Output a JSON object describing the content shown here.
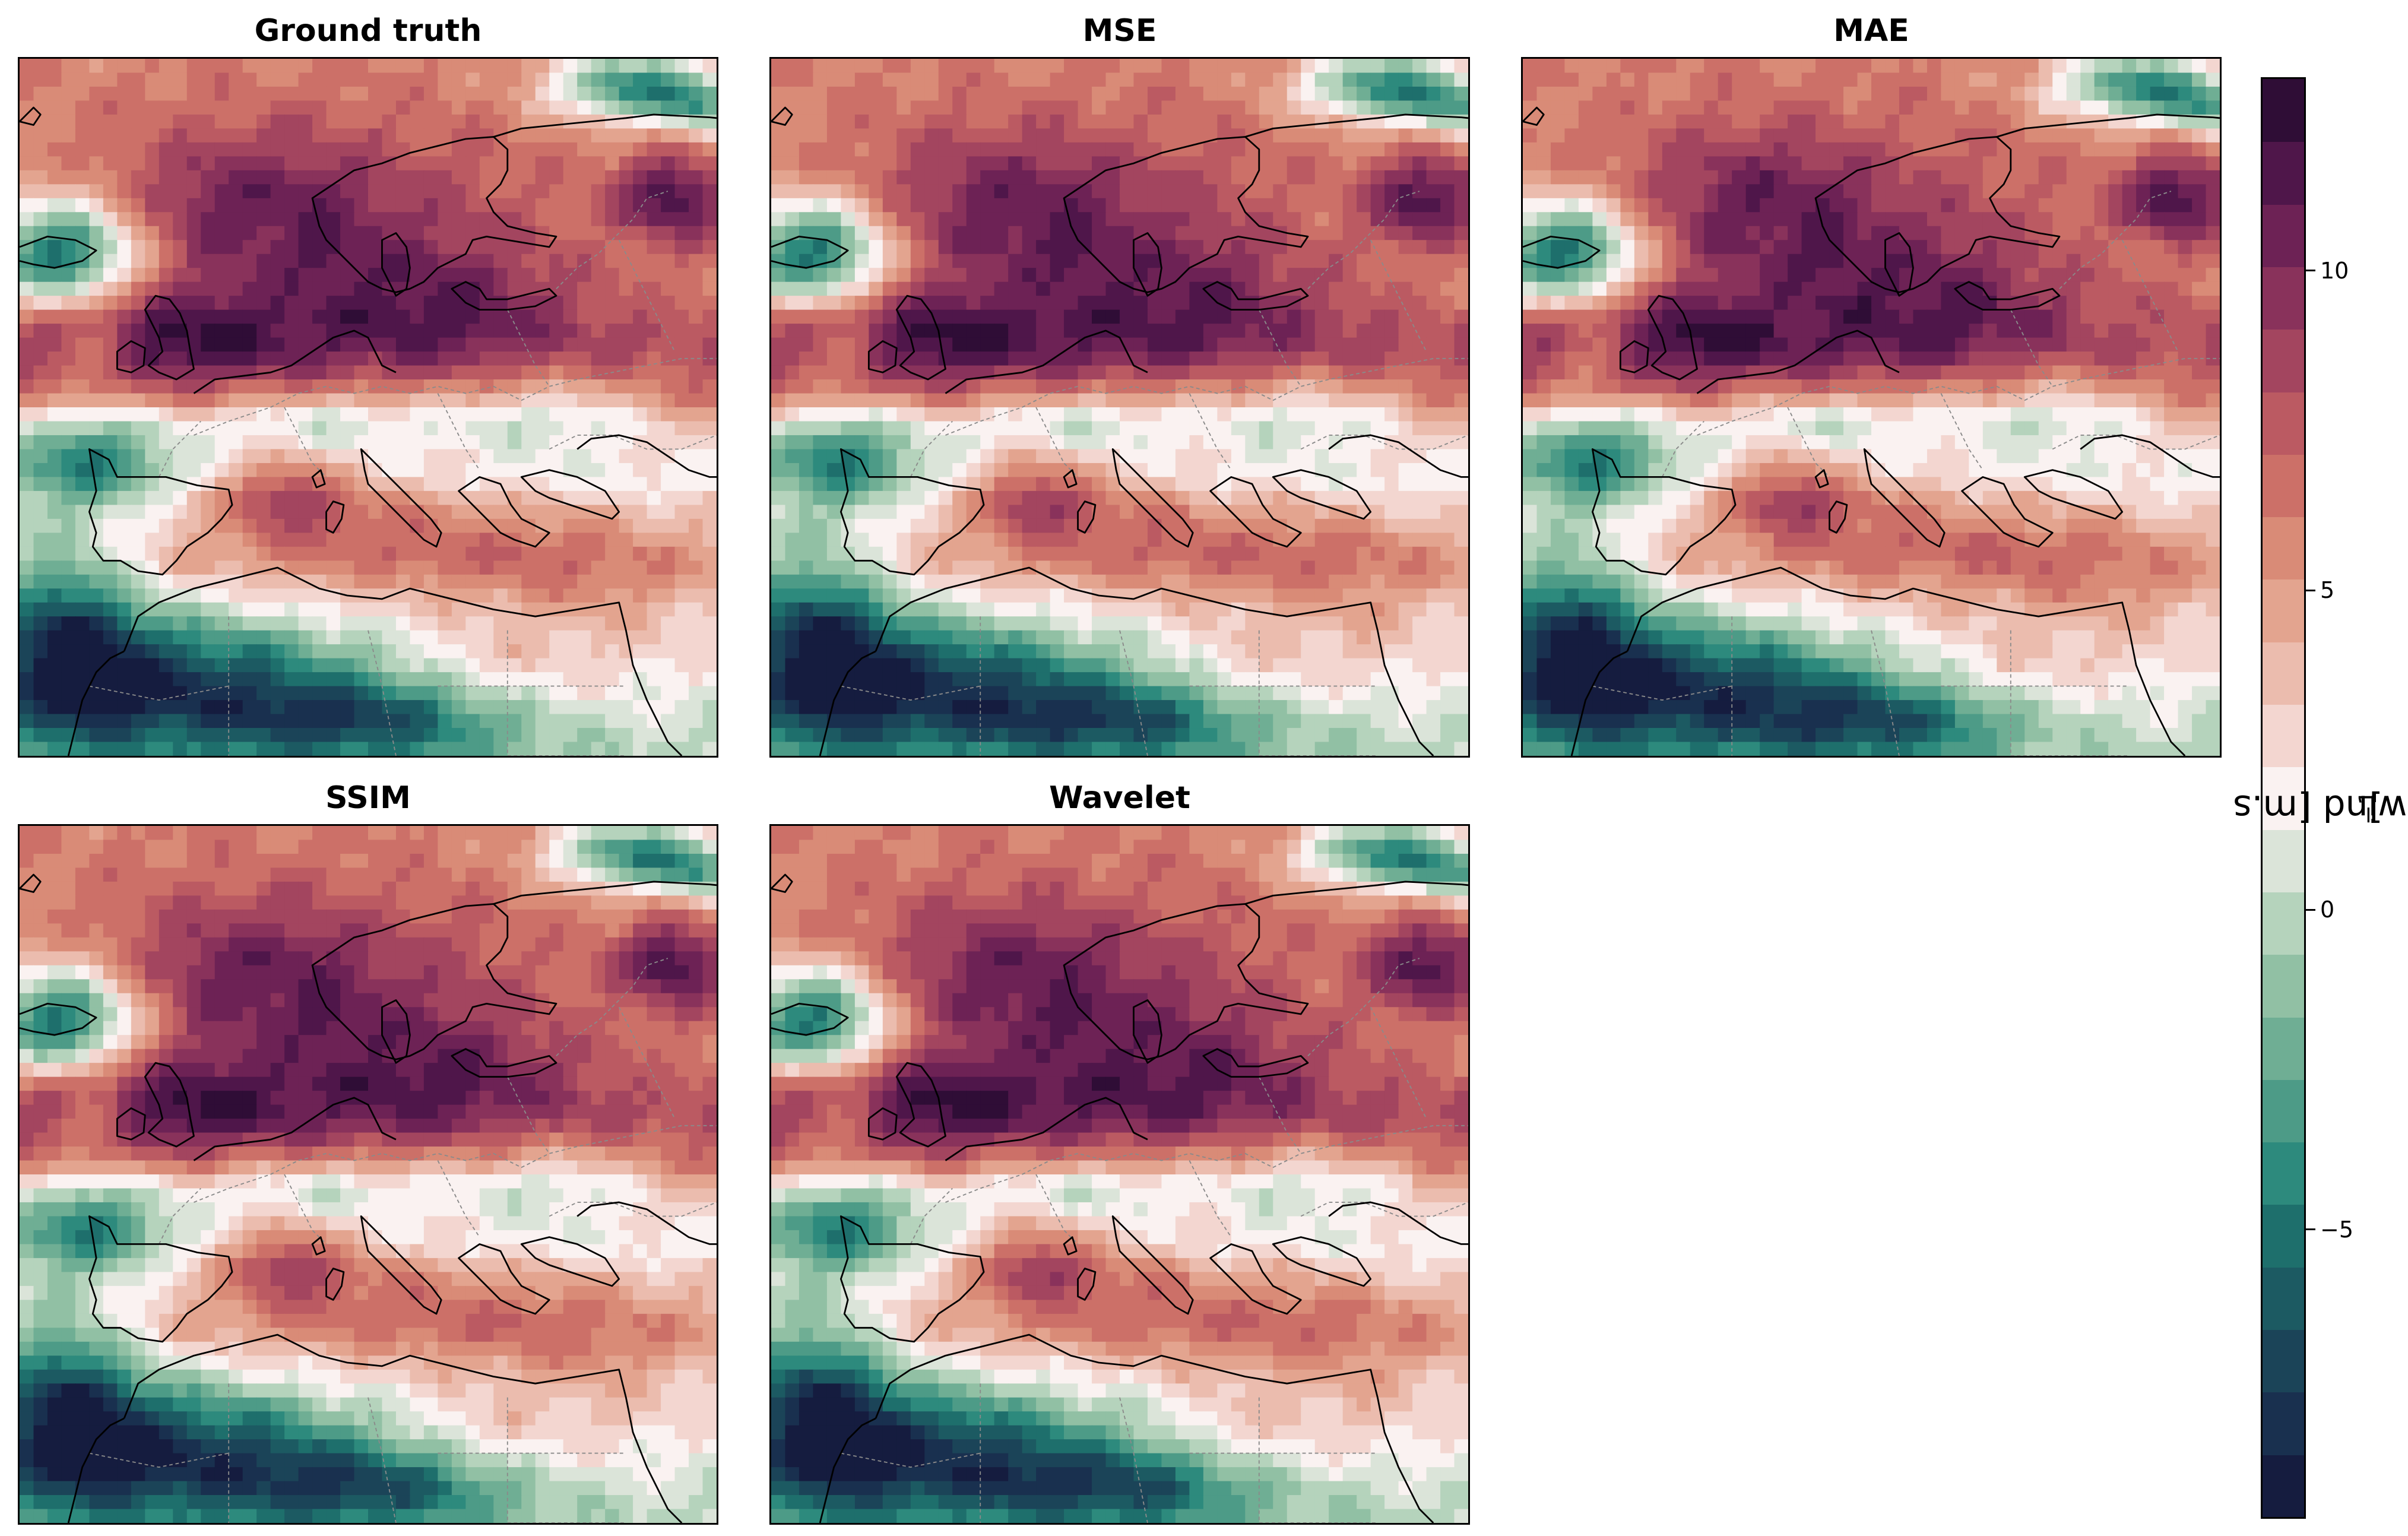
{
  "panels": [
    {
      "title": "Ground truth"
    },
    {
      "title": "MSE"
    },
    {
      "title": "MAE"
    },
    {
      "title": "SSIM"
    },
    {
      "title": "Wavelet"
    }
  ],
  "colorbar": {
    "label_text": "Zonal wind [m.s",
    "label_exponent": "−1",
    "label_close": "]",
    "ticks": [
      {
        "label": "10",
        "value": 10
      },
      {
        "label": "5",
        "value": 5
      },
      {
        "label": "0",
        "value": 0
      },
      {
        "label": "−5",
        "value": -5
      }
    ],
    "range": [
      -9.5,
      13.0
    ],
    "colors_bottom_to_top": [
      "#151c3f",
      "#19304f",
      "#1b4458",
      "#1c5a62",
      "#1e6f6c",
      "#2d8a7d",
      "#4d9b87",
      "#6fae94",
      "#91c0a4",
      "#b5d3bc",
      "#dbe4d9",
      "#faf2f1",
      "#f3d6d0",
      "#ebbcae",
      "#e3a48f",
      "#d98b77",
      "#cc7068",
      "#bb5a62",
      "#a3455f",
      "#89325b",
      "#6d2255",
      "#4f164a",
      "#2f0d36"
    ]
  }
}
